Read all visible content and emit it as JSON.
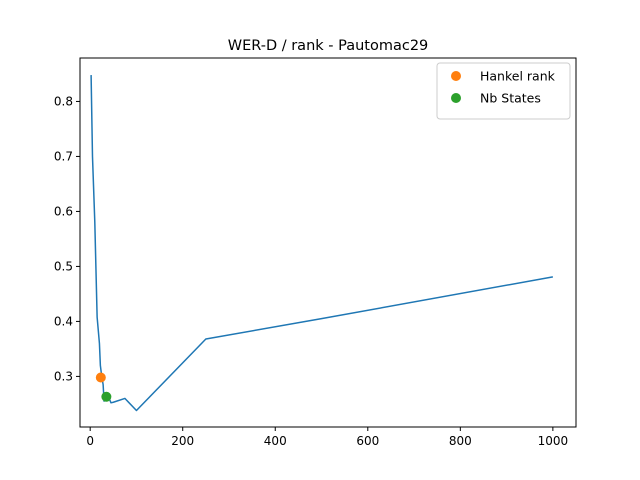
{
  "chart_data": {
    "type": "line",
    "title": "WER-D / rank - Pautomac29",
    "xlabel": "",
    "ylabel": "",
    "xlim": [
      -22,
      1050
    ],
    "ylim": [
      0.208,
      0.879
    ],
    "x_ticks": [
      0,
      200,
      400,
      600,
      800,
      1000
    ],
    "y_ticks": [
      0.3,
      0.4,
      0.5,
      0.6,
      0.7,
      0.8
    ],
    "grid": false,
    "legend_position": "top-right",
    "series": [
      {
        "style": "line",
        "color": "#1f77b4",
        "x": [
          2,
          5,
          10,
          15,
          20,
          22,
          25,
          28,
          30,
          33,
          35,
          38,
          40,
          45,
          50,
          75,
          100,
          250,
          500,
          1000
        ],
        "y": [
          0.848,
          0.7,
          0.58,
          0.408,
          0.36,
          0.32,
          0.3,
          0.285,
          0.255,
          0.27,
          0.262,
          0.258,
          0.262,
          0.252,
          0.253,
          0.26,
          0.238,
          0.368,
          0.405,
          0.481
        ]
      },
      {
        "name": "Hankel rank",
        "style": "point",
        "color": "#ff7f0e",
        "x": [
          23
        ],
        "y": [
          0.298
        ]
      },
      {
        "name": "Nb States",
        "style": "point",
        "color": "#2ca02c",
        "x": [
          35
        ],
        "y": [
          0.263
        ]
      }
    ]
  }
}
